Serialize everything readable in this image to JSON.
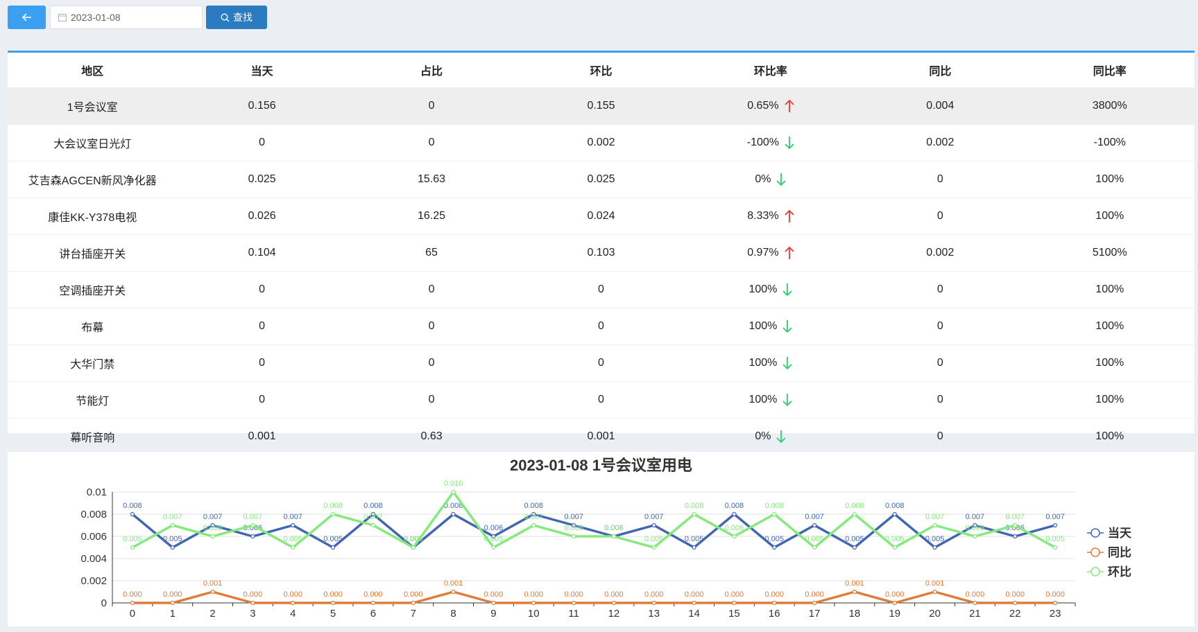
{
  "toolbar": {
    "back_icon": "arrow-left-icon",
    "date_value": "2023-01-08",
    "search_label": "查找"
  },
  "table": {
    "columns": [
      "地区",
      "当天",
      "占比",
      "环比",
      "环比率",
      "同比",
      "同比率"
    ],
    "rows": [
      {
        "name": "1号会议室",
        "today": "0.156",
        "ratio": "0",
        "mom": "0.155",
        "mom_rate": "0.65%",
        "trend": "up",
        "yoy": "0.004",
        "yoy_rate": "3800%"
      },
      {
        "name": "大会议室日光灯",
        "today": "0",
        "ratio": "0",
        "mom": "0.002",
        "mom_rate": "-100%",
        "trend": "down",
        "yoy": "0.002",
        "yoy_rate": "-100%"
      },
      {
        "name": "艾吉森AGCEN新风净化器",
        "today": "0.025",
        "ratio": "15.63",
        "mom": "0.025",
        "mom_rate": "0%",
        "trend": "down",
        "yoy": "0",
        "yoy_rate": "100%"
      },
      {
        "name": "康佳KK-Y378电视",
        "today": "0.026",
        "ratio": "16.25",
        "mom": "0.024",
        "mom_rate": "8.33%",
        "trend": "up",
        "yoy": "0",
        "yoy_rate": "100%"
      },
      {
        "name": "讲台插座开关",
        "today": "0.104",
        "ratio": "65",
        "mom": "0.103",
        "mom_rate": "0.97%",
        "trend": "up",
        "yoy": "0.002",
        "yoy_rate": "5100%"
      },
      {
        "name": "空调插座开关",
        "today": "0",
        "ratio": "0",
        "mom": "0",
        "mom_rate": "100%",
        "trend": "down",
        "yoy": "0",
        "yoy_rate": "100%"
      },
      {
        "name": "布幕",
        "today": "0",
        "ratio": "0",
        "mom": "0",
        "mom_rate": "100%",
        "trend": "down",
        "yoy": "0",
        "yoy_rate": "100%"
      },
      {
        "name": "大华门禁",
        "today": "0",
        "ratio": "0",
        "mom": "0",
        "mom_rate": "100%",
        "trend": "down",
        "yoy": "0",
        "yoy_rate": "100%"
      },
      {
        "name": "节能灯",
        "today": "0",
        "ratio": "0",
        "mom": "0",
        "mom_rate": "100%",
        "trend": "down",
        "yoy": "0",
        "yoy_rate": "100%"
      },
      {
        "name": "幕听音响",
        "today": "0.001",
        "ratio": "0.63",
        "mom": "0.001",
        "mom_rate": "0%",
        "trend": "down",
        "yoy": "0",
        "yoy_rate": "100%"
      }
    ]
  },
  "colors": {
    "up": "#e53935",
    "down": "#2ecc71",
    "accent": "#3b9ff2"
  },
  "chart_data": {
    "type": "line",
    "title": "2023-01-08 1号会议室用电",
    "x": [
      0,
      1,
      2,
      3,
      4,
      5,
      6,
      7,
      8,
      9,
      10,
      11,
      12,
      13,
      14,
      15,
      16,
      17,
      18,
      19,
      20,
      21,
      22,
      23
    ],
    "ylim": [
      0,
      0.01
    ],
    "yticks": [
      "0",
      "0.002",
      "0.004",
      "0.006",
      "0.008",
      "0.01"
    ],
    "legend_position": "right",
    "series": [
      {
        "name": "当天",
        "color": "#4266b4",
        "values": [
          0.008,
          0.005,
          0.007,
          0.006,
          0.007,
          0.005,
          0.008,
          0.005,
          0.008,
          0.006,
          0.008,
          0.007,
          0.006,
          0.007,
          0.005,
          0.008,
          0.005,
          0.007,
          0.005,
          0.008,
          0.005,
          0.007,
          0.006,
          0.007
        ]
      },
      {
        "name": "同比",
        "color": "#e07b39",
        "values": [
          0,
          0,
          0.001,
          0,
          0,
          0,
          0,
          0,
          0.001,
          0,
          0,
          0,
          0,
          0,
          0,
          0,
          0,
          0,
          0.001,
          0,
          0.001,
          0,
          0,
          0
        ]
      },
      {
        "name": "环比",
        "color": "#84ea7c",
        "values": [
          0.005,
          0.007,
          0.006,
          0.007,
          0.005,
          0.008,
          0.007,
          0.005,
          0.01,
          0.005,
          0.007,
          0.006,
          0.006,
          0.005,
          0.008,
          0.006,
          0.008,
          0.005,
          0.008,
          0.005,
          0.007,
          0.006,
          0.007,
          0.005
        ]
      }
    ]
  }
}
